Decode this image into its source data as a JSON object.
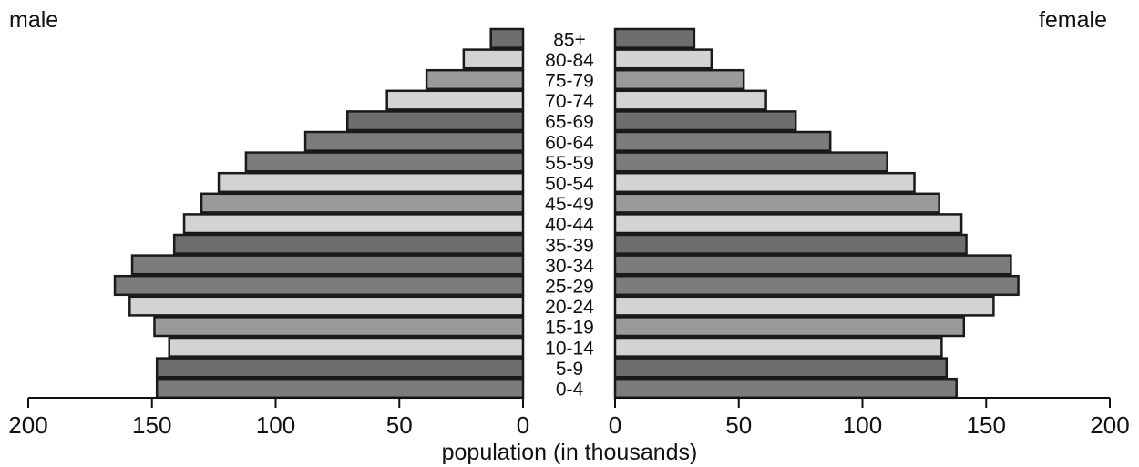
{
  "chart_data": {
    "type": "bar",
    "orientation": "horizontal",
    "layout": "population-pyramid",
    "xlabel": "population (in thousands)",
    "xlim": [
      0,
      200
    ],
    "x_ticks": [
      "0",
      "50",
      "100",
      "150",
      "200"
    ],
    "grid": false,
    "categories": [
      "85+",
      "80-84",
      "75-79",
      "70-74",
      "65-69",
      "60-64",
      "55-59",
      "50-54",
      "45-49",
      "40-44",
      "35-39",
      "30-34",
      "25-29",
      "20-24",
      "15-19",
      "10-14",
      "5-9",
      "0-4"
    ],
    "series": [
      {
        "name": "male",
        "values": [
          13,
          24,
          39,
          55,
          71,
          88,
          112,
          123,
          130,
          137,
          141,
          158,
          165,
          159,
          149,
          143,
          148,
          148
        ]
      },
      {
        "name": "female",
        "values": [
          32,
          39,
          52,
          61,
          73,
          87,
          110,
          121,
          131,
          140,
          142,
          160,
          163,
          153,
          141,
          132,
          134,
          138
        ]
      }
    ],
    "bar_shades": [
      "#6e6e6e",
      "#d3d3d3",
      "#9a9a9a",
      "#d3d3d3",
      "#6e6e6e",
      "#7c7c7c",
      "#7c7c7c",
      "#d3d3d3",
      "#9a9a9a",
      "#d3d3d3",
      "#6e6e6e",
      "#7c7c7c",
      "#7c7c7c",
      "#d3d3d3",
      "#9a9a9a",
      "#d3d3d3",
      "#6e6e6e",
      "#7c7c7c"
    ],
    "stroke_color": "#1a1a1a"
  }
}
